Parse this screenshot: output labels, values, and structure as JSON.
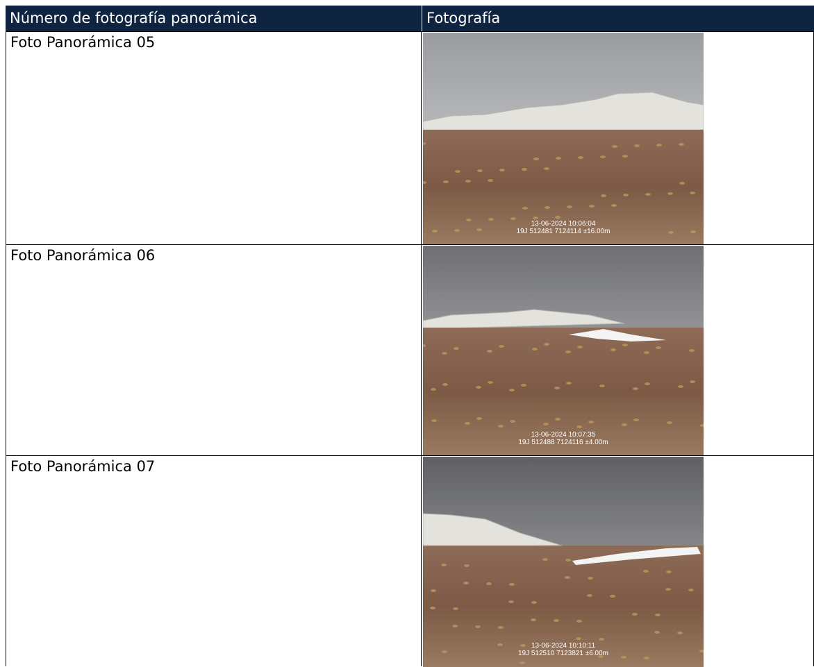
{
  "table": {
    "header": [
      "Número de fotografía panorámica",
      "Fotografía"
    ],
    "rows": [
      {
        "label": "Foto Panorámica 05",
        "stamp": [
          "13-06-2024 10:06:04",
          "19J 512481 7124114 ±16.00m"
        ]
      },
      {
        "label": "Foto Panorámica 06",
        "stamp": [
          "13-06-2024 10:07:35",
          "19J 512488 7124116 ±4.00m"
        ]
      },
      {
        "label": "Foto Panorámica 07",
        "stamp": [
          "13-06-2024 10:10:11",
          "19J 512510 7123821 ±6.00m"
        ]
      }
    ]
  }
}
